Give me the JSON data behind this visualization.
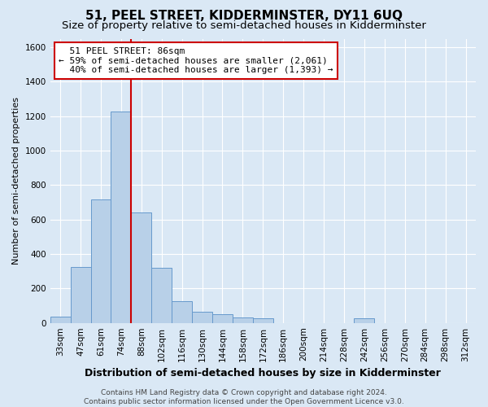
{
  "title": "51, PEEL STREET, KIDDERMINSTER, DY11 6UQ",
  "subtitle": "Size of property relative to semi-detached houses in Kidderminster",
  "xlabel": "Distribution of semi-detached houses by size in Kidderminster",
  "ylabel": "Number of semi-detached properties",
  "footer_line1": "Contains HM Land Registry data © Crown copyright and database right 2024.",
  "footer_line2": "Contains public sector information licensed under the Open Government Licence v3.0.",
  "bar_labels": [
    "33sqm",
    "47sqm",
    "61sqm",
    "74sqm",
    "88sqm",
    "102sqm",
    "116sqm",
    "130sqm",
    "144sqm",
    "158sqm",
    "172sqm",
    "186sqm",
    "200sqm",
    "214sqm",
    "228sqm",
    "242sqm",
    "256sqm",
    "270sqm",
    "284sqm",
    "298sqm",
    "312sqm"
  ],
  "bar_values": [
    35,
    325,
    715,
    1225,
    640,
    320,
    125,
    65,
    50,
    30,
    25,
    0,
    0,
    0,
    0,
    25,
    0,
    0,
    0,
    0,
    0
  ],
  "bar_color": "#b8d0e8",
  "bar_edge_color": "#6699cc",
  "property_label": "51 PEEL STREET: 86sqm",
  "pct_smaller": 59,
  "count_smaller": 2061,
  "pct_larger": 40,
  "count_larger": 1393,
  "vline_at_index": 4,
  "vline_color": "#cc0000",
  "annotation_box_color": "#cc0000",
  "ylim": [
    0,
    1650
  ],
  "yticks": [
    0,
    200,
    400,
    600,
    800,
    1000,
    1200,
    1400,
    1600
  ],
  "bg_color": "#dae8f5",
  "plot_bg_color": "#dae8f5",
  "grid_color": "#ffffff",
  "title_fontsize": 11,
  "subtitle_fontsize": 9.5,
  "ylabel_fontsize": 8,
  "xlabel_fontsize": 9,
  "tick_fontsize": 7.5,
  "annotation_fontsize": 8,
  "footer_fontsize": 6.5
}
